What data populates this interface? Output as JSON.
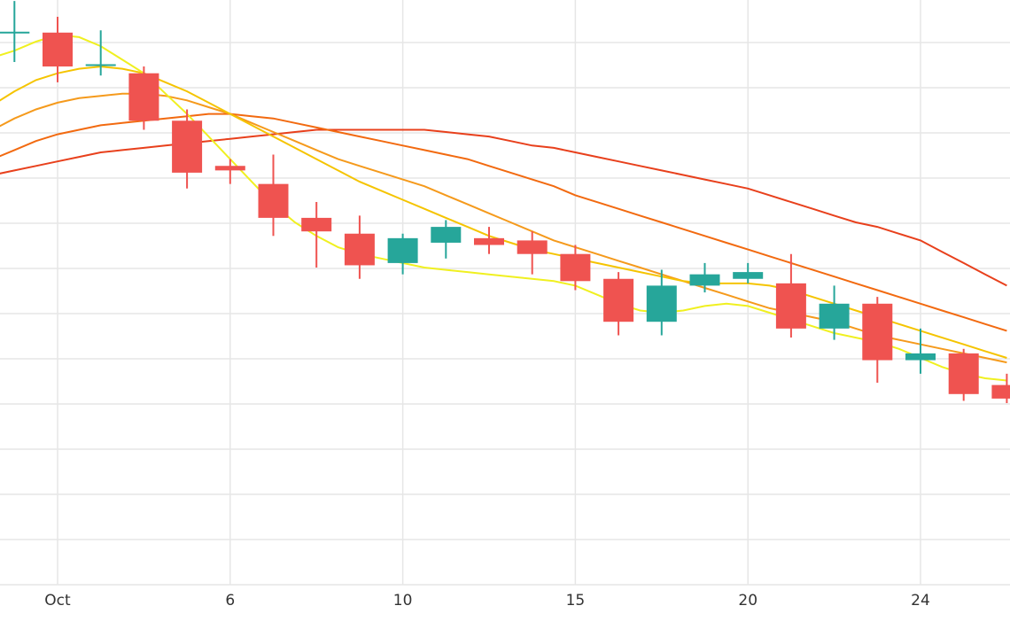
{
  "chart_data": {
    "type": "candlestick",
    "x_tick_labels": [
      {
        "day": 1,
        "label": "Oct"
      },
      {
        "day": 5,
        "label": "6"
      },
      {
        "day": 9,
        "label": "10"
      },
      {
        "day": 13,
        "label": "15"
      },
      {
        "day": 17,
        "label": "20"
      },
      {
        "day": 21,
        "label": "24"
      }
    ],
    "grid": true,
    "up_color": "#26a69a",
    "down_color": "#ef5350",
    "candles": [
      {
        "day": 0,
        "open": 112.0,
        "high": 119.0,
        "low": 105.5,
        "close": 112.2
      },
      {
        "day": 1,
        "open": 112.0,
        "high": 115.5,
        "low": 101.0,
        "close": 104.5
      },
      {
        "day": 2,
        "open": 105.0,
        "high": 112.5,
        "low": 102.5,
        "close": 105.0
      },
      {
        "day": 3,
        "open": 103.0,
        "high": 104.5,
        "low": 90.5,
        "close": 92.5
      },
      {
        "day": 4,
        "open": 92.5,
        "high": 95.0,
        "low": 77.5,
        "close": 81.0
      },
      {
        "day": 5,
        "open": 82.5,
        "high": 84.0,
        "low": 78.5,
        "close": 81.5
      },
      {
        "day": 6,
        "open": 78.5,
        "high": 85.0,
        "low": 67.0,
        "close": 71.0
      },
      {
        "day": 7,
        "open": 71.0,
        "high": 74.5,
        "low": 60.0,
        "close": 68.0
      },
      {
        "day": 8,
        "open": 67.5,
        "high": 71.5,
        "low": 57.5,
        "close": 60.5
      },
      {
        "day": 9,
        "open": 61.0,
        "high": 67.5,
        "low": 58.5,
        "close": 66.5
      },
      {
        "day": 10,
        "open": 65.5,
        "high": 70.5,
        "low": 62.0,
        "close": 69.0
      },
      {
        "day": 11,
        "open": 66.5,
        "high": 69.0,
        "low": 63.0,
        "close": 65.0
      },
      {
        "day": 12,
        "open": 66.0,
        "high": 68.0,
        "low": 58.5,
        "close": 63.0
      },
      {
        "day": 13,
        "open": 63.0,
        "high": 65.0,
        "low": 55.0,
        "close": 57.0
      },
      {
        "day": 14,
        "open": 57.5,
        "high": 59.0,
        "low": 45.0,
        "close": 48.0
      },
      {
        "day": 15,
        "open": 48.0,
        "high": 59.5,
        "low": 45.0,
        "close": 56.0
      },
      {
        "day": 16,
        "open": 56.0,
        "high": 61.0,
        "low": 54.5,
        "close": 58.5
      },
      {
        "day": 17,
        "open": 57.5,
        "high": 61.0,
        "low": 56.5,
        "close": 59.0
      },
      {
        "day": 18,
        "open": 56.5,
        "high": 63.0,
        "low": 44.5,
        "close": 46.5
      },
      {
        "day": 19,
        "open": 46.5,
        "high": 56.0,
        "low": 44.0,
        "close": 52.0
      },
      {
        "day": 20,
        "open": 52.0,
        "high": 53.5,
        "low": 34.5,
        "close": 39.5
      },
      {
        "day": 21,
        "open": 39.5,
        "high": 46.5,
        "low": 36.5,
        "close": 41.0
      },
      {
        "day": 22,
        "open": 41.0,
        "high": 42.0,
        "low": 30.5,
        "close": 32.0
      },
      {
        "day": 23,
        "open": 34.0,
        "high": 36.5,
        "low": 30.0,
        "close": 31.0
      }
    ],
    "series": [
      {
        "color": "#f0f020",
        "points": [
          [
            -1.5,
            105.5
          ],
          [
            -0.5,
            106.5
          ],
          [
            0,
            108
          ],
          [
            0.5,
            110
          ],
          [
            1,
            111.5
          ],
          [
            1.5,
            111
          ],
          [
            2,
            109
          ],
          [
            2.5,
            106
          ],
          [
            3,
            103
          ],
          [
            3.5,
            98.5
          ],
          [
            4,
            94
          ],
          [
            4.5,
            89
          ],
          [
            5,
            84
          ],
          [
            5.5,
            79
          ],
          [
            6,
            74
          ],
          [
            6.5,
            70
          ],
          [
            7,
            67
          ],
          [
            7.5,
            64.5
          ],
          [
            8,
            63
          ],
          [
            8.5,
            62
          ],
          [
            9,
            61
          ],
          [
            9.5,
            60
          ],
          [
            10,
            59.5
          ],
          [
            10.5,
            59
          ],
          [
            11,
            58.5
          ],
          [
            11.5,
            58
          ],
          [
            12,
            57.5
          ],
          [
            12.5,
            57
          ],
          [
            13,
            56
          ],
          [
            13.5,
            54
          ],
          [
            14,
            52
          ],
          [
            14.5,
            50.5
          ],
          [
            15,
            50
          ],
          [
            15.5,
            50.5
          ],
          [
            16,
            51.5
          ],
          [
            16.5,
            52
          ],
          [
            17,
            51.5
          ],
          [
            17.5,
            50
          ],
          [
            18,
            48.5
          ],
          [
            18.5,
            47
          ],
          [
            19,
            45.5
          ],
          [
            19.5,
            44.5
          ],
          [
            20,
            43.5
          ],
          [
            20.5,
            42
          ],
          [
            21,
            40
          ],
          [
            21.5,
            38
          ],
          [
            22,
            36.5
          ],
          [
            22.5,
            35.5
          ],
          [
            23,
            35
          ]
        ]
      },
      {
        "color": "#f5c400",
        "points": [
          [
            -1.5,
            93
          ],
          [
            -0.5,
            96
          ],
          [
            0,
            99
          ],
          [
            0.5,
            101.5
          ],
          [
            1,
            103
          ],
          [
            1.5,
            104
          ],
          [
            2,
            104.5
          ],
          [
            2.5,
            104
          ],
          [
            3,
            103
          ],
          [
            3.5,
            101
          ],
          [
            4,
            99
          ],
          [
            4.5,
            96.5
          ],
          [
            5,
            94
          ],
          [
            5.5,
            91.5
          ],
          [
            6,
            89
          ],
          [
            6.5,
            86.5
          ],
          [
            7,
            84
          ],
          [
            7.5,
            81.5
          ],
          [
            8,
            79
          ],
          [
            8.5,
            77
          ],
          [
            9,
            75
          ],
          [
            9.5,
            73
          ],
          [
            10,
            71
          ],
          [
            10.5,
            69
          ],
          [
            11,
            67
          ],
          [
            11.5,
            65.5
          ],
          [
            12,
            64
          ],
          [
            12.5,
            63
          ],
          [
            13,
            62
          ],
          [
            13.5,
            61
          ],
          [
            14,
            60
          ],
          [
            14.5,
            59
          ],
          [
            15,
            58
          ],
          [
            15.5,
            57
          ],
          [
            16,
            56.5
          ],
          [
            16.5,
            56.5
          ],
          [
            17,
            56.5
          ],
          [
            17.5,
            56
          ],
          [
            18,
            55
          ],
          [
            18.5,
            53.5
          ],
          [
            19,
            52
          ],
          [
            19.5,
            50.5
          ],
          [
            20,
            49
          ],
          [
            20.5,
            47.5
          ],
          [
            21,
            46
          ],
          [
            21.5,
            44.5
          ],
          [
            22,
            43
          ],
          [
            22.5,
            41.5
          ],
          [
            23,
            40
          ]
        ]
      },
      {
        "color": "#f59a1c",
        "points": [
          [
            -1.5,
            86
          ],
          [
            -0.5,
            90.5
          ],
          [
            0,
            93
          ],
          [
            0.5,
            95
          ],
          [
            1,
            96.5
          ],
          [
            1.5,
            97.5
          ],
          [
            2,
            98
          ],
          [
            2.5,
            98.5
          ],
          [
            3,
            98.5
          ],
          [
            3.5,
            98
          ],
          [
            4,
            97
          ],
          [
            4.5,
            95.5
          ],
          [
            5,
            94
          ],
          [
            5.5,
            92
          ],
          [
            6,
            90
          ],
          [
            6.5,
            88
          ],
          [
            7,
            86
          ],
          [
            7.5,
            84
          ],
          [
            8,
            82.5
          ],
          [
            8.5,
            81
          ],
          [
            9,
            79.5
          ],
          [
            9.5,
            78
          ],
          [
            10,
            76
          ],
          [
            10.5,
            74
          ],
          [
            11,
            72
          ],
          [
            11.5,
            70
          ],
          [
            12,
            68
          ],
          [
            12.5,
            66
          ],
          [
            13,
            64.5
          ],
          [
            13.5,
            63
          ],
          [
            14,
            61.5
          ],
          [
            14.5,
            60
          ],
          [
            15,
            58.5
          ],
          [
            15.5,
            57
          ],
          [
            16,
            55.5
          ],
          [
            16.5,
            54
          ],
          [
            17,
            52.5
          ],
          [
            17.5,
            51
          ],
          [
            18,
            50
          ],
          [
            18.5,
            49
          ],
          [
            19,
            48
          ],
          [
            19.5,
            46.5
          ],
          [
            20,
            45
          ],
          [
            20.5,
            44
          ],
          [
            21,
            43
          ],
          [
            21.5,
            42
          ],
          [
            22,
            41
          ],
          [
            22.5,
            40
          ],
          [
            23,
            39
          ]
        ]
      },
      {
        "color": "#f26a10",
        "points": [
          [
            -1.5,
            80
          ],
          [
            -0.5,
            84
          ],
          [
            0,
            86
          ],
          [
            0.5,
            88
          ],
          [
            1,
            89.5
          ],
          [
            1.5,
            90.5
          ],
          [
            2,
            91.5
          ],
          [
            2.5,
            92
          ],
          [
            3,
            92.5
          ],
          [
            3.5,
            93
          ],
          [
            4,
            93.5
          ],
          [
            4.5,
            94
          ],
          [
            5,
            94
          ],
          [
            5.5,
            93.5
          ],
          [
            6,
            93
          ],
          [
            6.5,
            92
          ],
          [
            7,
            91
          ],
          [
            7.5,
            90
          ],
          [
            8,
            89
          ],
          [
            8.5,
            88
          ],
          [
            9,
            87
          ],
          [
            9.5,
            86
          ],
          [
            10,
            85
          ],
          [
            10.5,
            84
          ],
          [
            11,
            82.5
          ],
          [
            11.5,
            81
          ],
          [
            12,
            79.5
          ],
          [
            12.5,
            78
          ],
          [
            13,
            76
          ],
          [
            13.5,
            74.5
          ],
          [
            14,
            73
          ],
          [
            14.5,
            71.5
          ],
          [
            15,
            70
          ],
          [
            15.5,
            68.5
          ],
          [
            16,
            67
          ],
          [
            16.5,
            65.5
          ],
          [
            17,
            64
          ],
          [
            17.5,
            62.5
          ],
          [
            18,
            61
          ],
          [
            18.5,
            59.5
          ],
          [
            19,
            58
          ],
          [
            19.5,
            56.5
          ],
          [
            20,
            55
          ],
          [
            20.5,
            53.5
          ],
          [
            21,
            52
          ],
          [
            21.5,
            50.5
          ],
          [
            22,
            49
          ],
          [
            22.5,
            47.5
          ],
          [
            23,
            46
          ]
        ]
      },
      {
        "color": "#e8401c",
        "points": [
          [
            -1.5,
            78
          ],
          [
            -0.5,
            80.5
          ],
          [
            0,
            81.5
          ],
          [
            0.5,
            82.5
          ],
          [
            1,
            83.5
          ],
          [
            1.5,
            84.5
          ],
          [
            2,
            85.5
          ],
          [
            2.5,
            86
          ],
          [
            3,
            86.5
          ],
          [
            3.5,
            87
          ],
          [
            4,
            87.5
          ],
          [
            4.5,
            88
          ],
          [
            5,
            88.5
          ],
          [
            5.5,
            89
          ],
          [
            6,
            89.5
          ],
          [
            6.5,
            90
          ],
          [
            7,
            90.5
          ],
          [
            7.5,
            90.5
          ],
          [
            8,
            90.5
          ],
          [
            8.5,
            90.5
          ],
          [
            9,
            90.5
          ],
          [
            9.5,
            90.5
          ],
          [
            10,
            90
          ],
          [
            10.5,
            89.5
          ],
          [
            11,
            89
          ],
          [
            11.5,
            88
          ],
          [
            12,
            87
          ],
          [
            12.5,
            86.5
          ],
          [
            13,
            85.5
          ],
          [
            13.5,
            84.5
          ],
          [
            14,
            83.5
          ],
          [
            14.5,
            82.5
          ],
          [
            15,
            81.5
          ],
          [
            15.5,
            80.5
          ],
          [
            16,
            79.5
          ],
          [
            16.5,
            78.5
          ],
          [
            17,
            77.5
          ],
          [
            17.5,
            76
          ],
          [
            18,
            74.5
          ],
          [
            18.5,
            73
          ],
          [
            19,
            71.5
          ],
          [
            19.5,
            70
          ],
          [
            20,
            69
          ],
          [
            20.5,
            67.5
          ],
          [
            21,
            66
          ],
          [
            21.5,
            63.5
          ],
          [
            22,
            61
          ],
          [
            22.5,
            58.5
          ],
          [
            23,
            56
          ]
        ]
      }
    ]
  }
}
